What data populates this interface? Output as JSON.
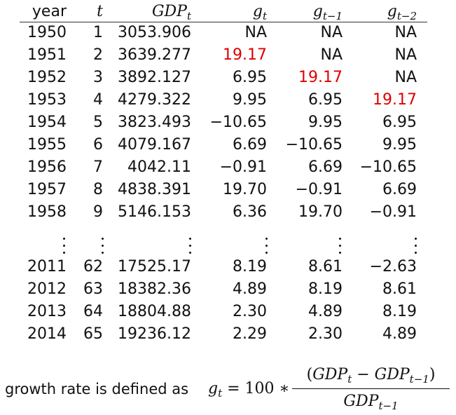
{
  "table": {
    "headers": {
      "year": "year",
      "t": "t",
      "gdp": {
        "base": "GDP",
        "sub": "t"
      },
      "g": {
        "base": "g",
        "sub": "t"
      },
      "g_lag1": {
        "base": "g",
        "sub": "t−1"
      },
      "g_lag2": {
        "base": "g",
        "sub": "t−2"
      }
    },
    "rows": [
      {
        "year": "1950",
        "t": "1",
        "gdp": "3053.906",
        "g": "NA",
        "g1": "NA",
        "g2": "NA"
      },
      {
        "year": "1951",
        "t": "2",
        "gdp": "3639.277",
        "g": "19.17",
        "g1": "NA",
        "g2": "NA"
      },
      {
        "year": "1952",
        "t": "3",
        "gdp": "3892.127",
        "g": "6.95",
        "g1": "19.17",
        "g2": "NA"
      },
      {
        "year": "1953",
        "t": "4",
        "gdp": "4279.322",
        "g": "9.95",
        "g1": "6.95",
        "g2": "19.17"
      },
      {
        "year": "1954",
        "t": "5",
        "gdp": "3823.493",
        "g": "−10.65",
        "g1": "9.95",
        "g2": "6.95"
      },
      {
        "year": "1955",
        "t": "6",
        "gdp": "4079.167",
        "g": "6.69",
        "g1": "−10.65",
        "g2": "9.95"
      },
      {
        "year": "1956",
        "t": "7",
        "gdp": "4042.11",
        "g": "−0.91",
        "g1": "6.69",
        "g2": "−10.65"
      },
      {
        "year": "1957",
        "t": "8",
        "gdp": "4838.391",
        "g": "19.70",
        "g1": "−0.91",
        "g2": "6.69"
      },
      {
        "year": "1958",
        "t": "9",
        "gdp": "5146.153",
        "g": "6.36",
        "g1": "19.70",
        "g2": "−0.91"
      },
      {
        "year": "2011",
        "t": "62",
        "gdp": "17525.17",
        "g": "8.19",
        "g1": "8.61",
        "g2": "−2.63"
      },
      {
        "year": "2012",
        "t": "63",
        "gdp": "18382.36",
        "g": "4.89",
        "g1": "8.19",
        "g2": "8.61"
      },
      {
        "year": "2013",
        "t": "64",
        "gdp": "18804.88",
        "g": "2.30",
        "g1": "4.89",
        "g2": "8.19"
      },
      {
        "year": "2014",
        "t": "65",
        "gdp": "19236.12",
        "g": "2.29",
        "g1": "2.30",
        "g2": "4.89"
      }
    ],
    "highlight_color": "#e00000",
    "highlight_value": "19.17"
  },
  "definition": {
    "text": "growth rate is defined as",
    "lhs": "g",
    "lhs_sub": "t",
    "equals_part": "= 100 ∗",
    "numerator": "(GDP",
    "numerator_sub1": "t",
    "numerator_mid": " − GDP",
    "numerator_sub2": "t−1",
    "numerator_end": ")",
    "denominator": "GDP",
    "denominator_sub": "t−1"
  }
}
